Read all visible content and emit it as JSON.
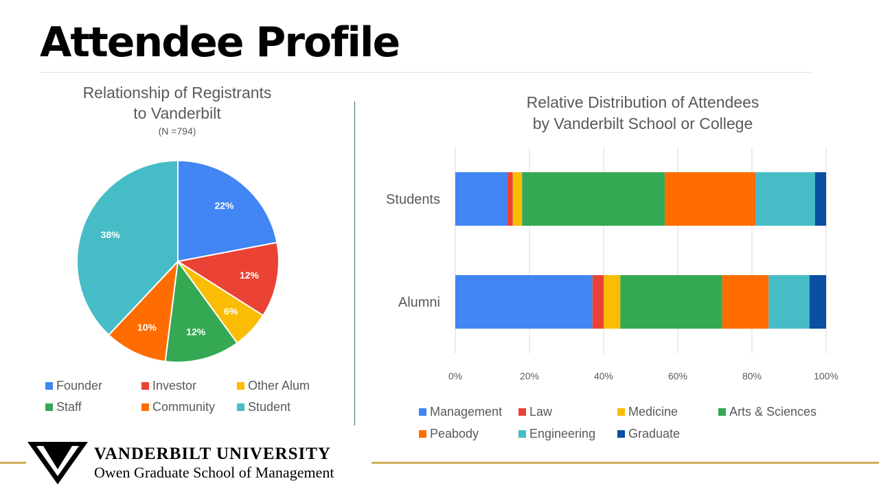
{
  "title": "Attendee Profile",
  "footer": {
    "university": "VANDERBILT UNIVERSITY",
    "school": "Owen Graduate School of Management"
  },
  "chart_data": [
    {
      "type": "pie",
      "title_line1": "Relationship of Registrants",
      "title_line2": "to Vanderbilt",
      "subtitle": "(N =794)",
      "legend_position": "bottom",
      "slices": [
        {
          "label": "Founder",
          "value": 22,
          "display": "22%",
          "color": "#4285f4"
        },
        {
          "label": "Investor",
          "value": 12,
          "display": "12%",
          "color": "#ea4335"
        },
        {
          "label": "Other Alum",
          "value": 6,
          "display": "6%",
          "color": "#fbbc04"
        },
        {
          "label": "Staff",
          "value": 12,
          "display": "12%",
          "color": "#34a853"
        },
        {
          "label": "Community",
          "value": 10,
          "display": "10%",
          "color": "#ff6d01"
        },
        {
          "label": "Student",
          "value": 38,
          "display": "38%",
          "color": "#46bdc6"
        }
      ]
    },
    {
      "type": "bar",
      "orientation": "horizontal",
      "stacked": "percent",
      "title_line1": "Relative Distribution of Attendees",
      "title_line2": "by Vanderbilt School or College",
      "categories": [
        "Students",
        "Alumni"
      ],
      "xlim": [
        0,
        100
      ],
      "xticks": [
        "0%",
        "20%",
        "40%",
        "60%",
        "80%",
        "100%"
      ],
      "grid": true,
      "legend_position": "bottom",
      "series": [
        {
          "name": "Management",
          "color": "#4285f4",
          "values": [
            14,
            37
          ]
        },
        {
          "name": "Law",
          "color": "#ea4335",
          "values": [
            1.5,
            3
          ]
        },
        {
          "name": "Medicine",
          "color": "#fbbc04",
          "values": [
            2.5,
            4.5
          ]
        },
        {
          "name": "Arts & Sciences",
          "color": "#34a853",
          "values": [
            38.5,
            27.5
          ]
        },
        {
          "name": "Peabody",
          "color": "#ff6d01",
          "values": [
            24.5,
            12.5
          ]
        },
        {
          "name": "Engineering",
          "color": "#46bdc6",
          "values": [
            16,
            11
          ]
        },
        {
          "name": "Graduate",
          "color": "#0b4ea2",
          "values": [
            3,
            4.5
          ]
        }
      ]
    }
  ]
}
